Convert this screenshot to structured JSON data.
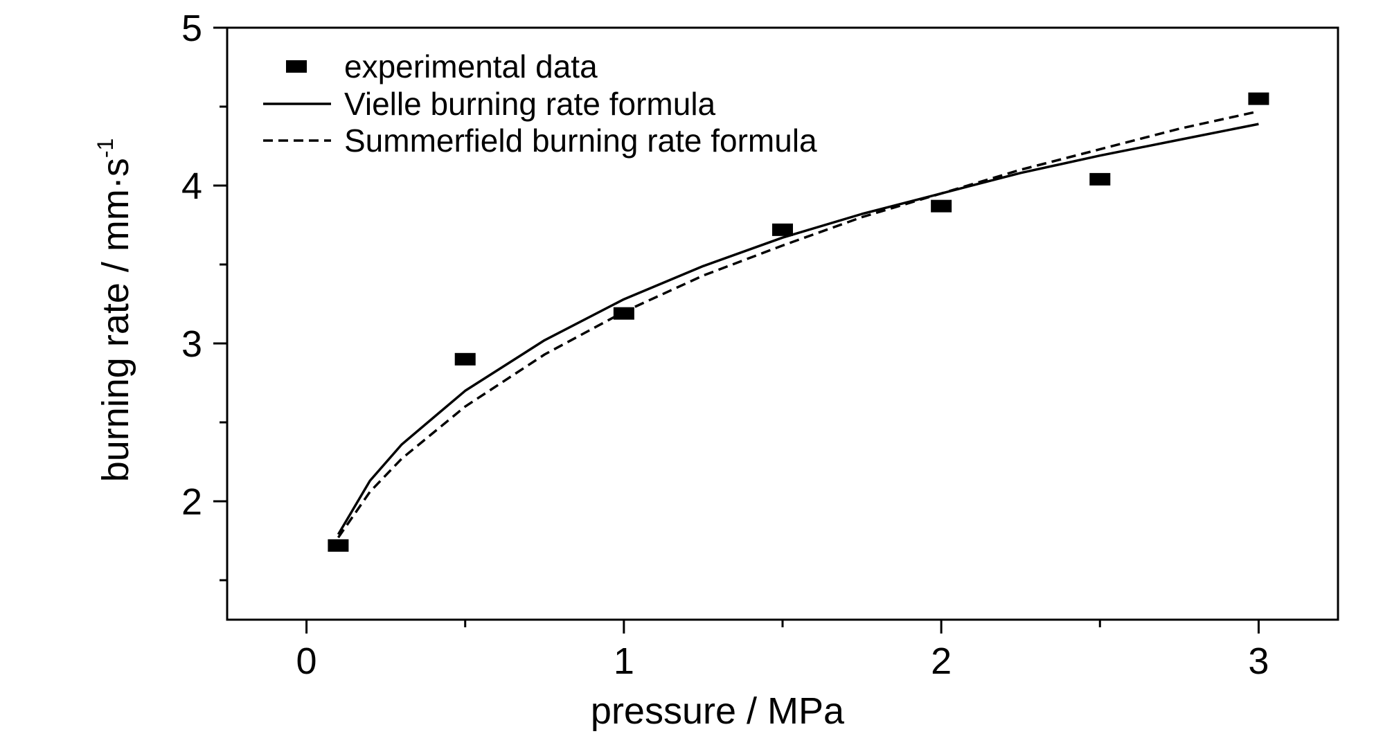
{
  "chart_data": {
    "type": "scatter",
    "xlabel": "pressure / MPa",
    "ylabel": "burning rate / mm·s",
    "ylabel_superscript": "-1",
    "xlim": [
      -0.25,
      3.25
    ],
    "ylim": [
      1.25,
      5.0
    ],
    "x_ticks": [
      0,
      1,
      2,
      3
    ],
    "x_tick_labels": [
      "0",
      "1",
      "2",
      "3"
    ],
    "x_minor_ticks": [
      0.5,
      1.5,
      2.5
    ],
    "y_ticks": [
      2,
      3,
      4,
      5
    ],
    "y_tick_labels": [
      "2",
      "3",
      "4",
      "5"
    ],
    "y_minor_ticks": [
      1.5,
      2.5,
      3.5,
      4.5
    ],
    "grid": false,
    "legend_position": "top-left",
    "series": [
      {
        "name": "experimental data",
        "kind": "scatter",
        "marker": "square",
        "x": [
          0.1,
          0.5,
          1.0,
          1.5,
          2.0,
          2.5,
          3.0
        ],
        "y": [
          1.72,
          2.9,
          3.19,
          3.72,
          3.87,
          4.04,
          4.55
        ]
      },
      {
        "name": "Vielle burning rate formula",
        "kind": "line",
        "style": "solid",
        "x": [
          0.1,
          0.2,
          0.3,
          0.5,
          0.75,
          1.0,
          1.25,
          1.5,
          1.75,
          2.0,
          2.25,
          2.5,
          2.75,
          3.0
        ],
        "y": [
          1.79,
          2.13,
          2.36,
          2.7,
          3.02,
          3.28,
          3.49,
          3.67,
          3.82,
          3.95,
          4.08,
          4.19,
          4.29,
          4.39
        ]
      },
      {
        "name": "Summerfield burning rate formula",
        "kind": "line",
        "style": "dashed",
        "x": [
          0.1,
          0.2,
          0.3,
          0.5,
          0.75,
          1.0,
          1.25,
          1.5,
          1.75,
          2.0,
          2.25,
          2.5,
          2.75,
          3.0
        ],
        "y": [
          1.77,
          2.06,
          2.27,
          2.6,
          2.93,
          3.2,
          3.43,
          3.62,
          3.8,
          3.95,
          4.1,
          4.23,
          4.36,
          4.47
        ]
      }
    ],
    "colors": {
      "axis": "#000000",
      "series": "#000000"
    }
  }
}
